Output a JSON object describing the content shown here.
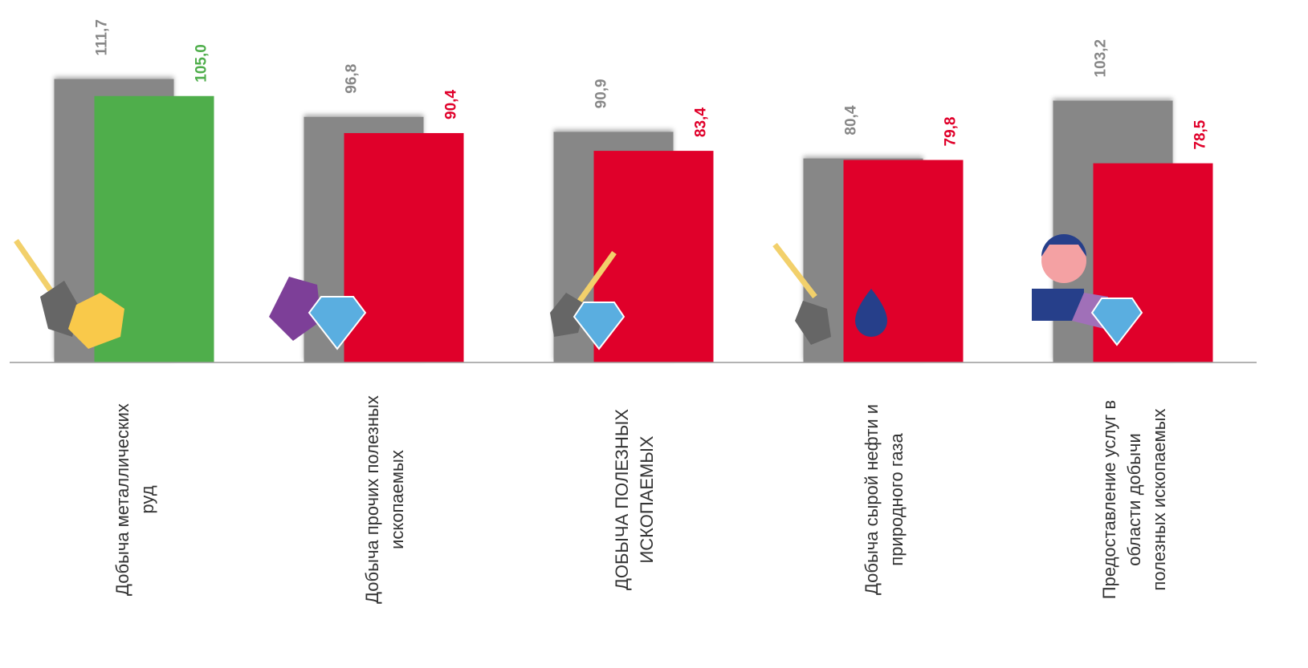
{
  "chart_data": {
    "type": "bar",
    "categories": [
      "Добыча металлических\nруд",
      "Добыча прочих полезных\nископаемых",
      "ДОБЫЧА ПОЛЕЗНЫХ\nИСКОПАЕМЫХ",
      "Добыча сырой нефти и\nприродного газа",
      "Предоставление услуг в\nобласти добычи\nполезных ископаемых"
    ],
    "series": [
      {
        "color": "#878787",
        "values": [
          111.7,
          96.8,
          90.9,
          80.4,
          103.2
        ],
        "value_labels": [
          "111,7",
          "96,8",
          "90,9",
          "80,4",
          "103,2"
        ]
      },
      {
        "colors": [
          "#4fae4b",
          "#e0002a",
          "#e0002a",
          "#e0002a",
          "#e0002a"
        ],
        "values": [
          105.0,
          90.4,
          83.4,
          79.8,
          78.5
        ],
        "value_labels": [
          "105,0",
          "90,4",
          "83,4",
          "79,8",
          "78,5"
        ]
      }
    ],
    "ylim": [
      0,
      140
    ]
  }
}
